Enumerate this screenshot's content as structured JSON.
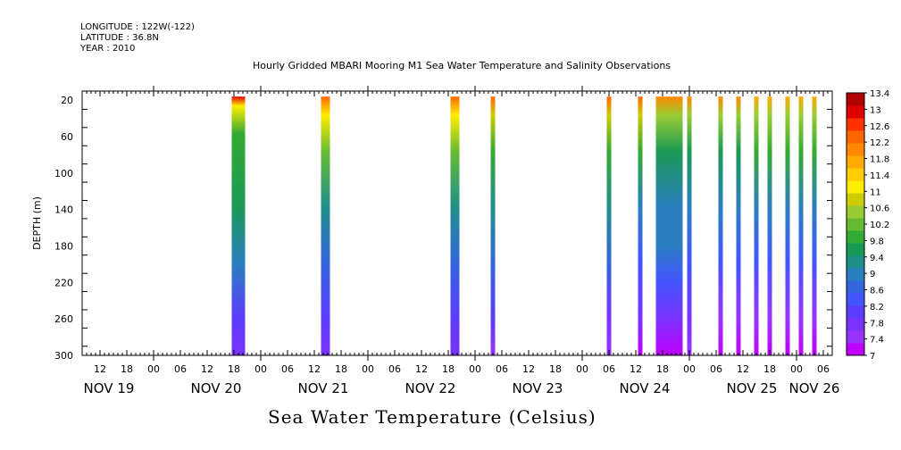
{
  "header": {
    "longitude": "LONGITUDE : 122W(-122)",
    "latitude": "LATITUDE : 36.8N",
    "year": "YEAR : 2010"
  },
  "chart_data": {
    "type": "heatmap",
    "title": "Hourly Gridded MBARI Mooring M1 Sea Water Temperature and Salinity Observations",
    "ylabel": "DEPTH (m)",
    "xlabel": "Sea Water Temperature (Celsius)",
    "y_reversed": true,
    "ylim": [
      300,
      10
    ],
    "y_ticks": [
      20,
      60,
      100,
      140,
      180,
      220,
      260,
      300
    ],
    "x_unit": "hour offset from NOV 19 00:00",
    "xlim": [
      8,
      176
    ],
    "x_hour_ticks": [
      {
        "t": 12,
        "label": "12"
      },
      {
        "t": 18,
        "label": "18"
      },
      {
        "t": 24,
        "label": "00"
      },
      {
        "t": 30,
        "label": "06"
      },
      {
        "t": 36,
        "label": "12"
      },
      {
        "t": 42,
        "label": "18"
      },
      {
        "t": 48,
        "label": "00"
      },
      {
        "t": 54,
        "label": "06"
      },
      {
        "t": 60,
        "label": "12"
      },
      {
        "t": 66,
        "label": "18"
      },
      {
        "t": 72,
        "label": "00"
      },
      {
        "t": 78,
        "label": "06"
      },
      {
        "t": 84,
        "label": "12"
      },
      {
        "t": 90,
        "label": "18"
      },
      {
        "t": 96,
        "label": "00"
      },
      {
        "t": 102,
        "label": "06"
      },
      {
        "t": 108,
        "label": "12"
      },
      {
        "t": 114,
        "label": "18"
      },
      {
        "t": 120,
        "label": "00"
      },
      {
        "t": 126,
        "label": "06"
      },
      {
        "t": 132,
        "label": "12"
      },
      {
        "t": 138,
        "label": "18"
      },
      {
        "t": 144,
        "label": "00"
      },
      {
        "t": 150,
        "label": "06"
      },
      {
        "t": 156,
        "label": "12"
      },
      {
        "t": 162,
        "label": "18"
      },
      {
        "t": 168,
        "label": "00"
      },
      {
        "t": 174,
        "label": "06"
      }
    ],
    "x_day_labels": [
      {
        "t": 14,
        "label": "NOV 19"
      },
      {
        "t": 38,
        "label": "NOV 20"
      },
      {
        "t": 62,
        "label": "NOV 21"
      },
      {
        "t": 86,
        "label": "NOV 22"
      },
      {
        "t": 110,
        "label": "NOV 23"
      },
      {
        "t": 134,
        "label": "NOV 24"
      },
      {
        "t": 158,
        "label": "NOV 25"
      },
      {
        "t": 172,
        "label": "NOV 26"
      }
    ],
    "colorbar": {
      "labels": [
        "13.4",
        "13",
        "12.6",
        "12.2",
        "11.8",
        "11.4",
        "11",
        "10.6",
        "10.2",
        "9.8",
        "9.4",
        "9",
        "8.6",
        "8.2",
        "7.8",
        "7.4",
        "7"
      ],
      "range": [
        7,
        13.6
      ],
      "colors": [
        "#c000ff",
        "#9933ff",
        "#7a33ff",
        "#5c3dff",
        "#4455ff",
        "#3366dd",
        "#2a7fc0",
        "#1f8f8a",
        "#1a9955",
        "#33aa33",
        "#66bb33",
        "#99cc33",
        "#cccc00",
        "#ffee00",
        "#ffcc00",
        "#ffaa00",
        "#ff8800",
        "#ff6600",
        "#ff3300",
        "#e00000",
        "#b00000"
      ]
    },
    "columns": [
      {
        "t_start": 41.5,
        "t_end": 44.5,
        "profile": [
          {
            "d": 20,
            "v": 13.0
          },
          {
            "d": 30,
            "v": 11.2
          },
          {
            "d": 60,
            "v": 10.0
          },
          {
            "d": 140,
            "v": 9.6
          },
          {
            "d": 200,
            "v": 8.9
          },
          {
            "d": 260,
            "v": 8.1
          },
          {
            "d": 300,
            "v": 7.8
          }
        ]
      },
      {
        "t_start": 61.5,
        "t_end": 63.5,
        "profile": [
          {
            "d": 20,
            "v": 12.5
          },
          {
            "d": 40,
            "v": 11.2
          },
          {
            "d": 80,
            "v": 10.3
          },
          {
            "d": 140,
            "v": 9.5
          },
          {
            "d": 200,
            "v": 8.8
          },
          {
            "d": 260,
            "v": 8.2
          },
          {
            "d": 300,
            "v": 7.8
          }
        ]
      },
      {
        "t_start": 90.5,
        "t_end": 92.5,
        "profile": [
          {
            "d": 20,
            "v": 12.6
          },
          {
            "d": 40,
            "v": 11.2
          },
          {
            "d": 80,
            "v": 10.2
          },
          {
            "d": 140,
            "v": 9.5
          },
          {
            "d": 200,
            "v": 8.8
          },
          {
            "d": 260,
            "v": 8.1
          },
          {
            "d": 300,
            "v": 7.7
          }
        ]
      },
      {
        "t_start": 99.5,
        "t_end": 100.5,
        "profile": [
          {
            "d": 20,
            "v": 12.4
          },
          {
            "d": 40,
            "v": 11.0
          },
          {
            "d": 80,
            "v": 10.1
          },
          {
            "d": 140,
            "v": 9.4
          },
          {
            "d": 200,
            "v": 8.7
          },
          {
            "d": 260,
            "v": 8.0
          },
          {
            "d": 300,
            "v": 7.6
          }
        ]
      },
      {
        "t_start": 125.5,
        "t_end": 126.5,
        "profile": [
          {
            "d": 20,
            "v": 12.4
          },
          {
            "d": 40,
            "v": 11.0
          },
          {
            "d": 80,
            "v": 10.0
          },
          {
            "d": 140,
            "v": 9.3
          },
          {
            "d": 200,
            "v": 8.6
          },
          {
            "d": 260,
            "v": 7.9
          },
          {
            "d": 300,
            "v": 7.5
          }
        ]
      },
      {
        "t_start": 132.5,
        "t_end": 133.5,
        "profile": [
          {
            "d": 20,
            "v": 12.4
          },
          {
            "d": 40,
            "v": 10.8
          },
          {
            "d": 80,
            "v": 9.9
          },
          {
            "d": 140,
            "v": 9.2
          },
          {
            "d": 200,
            "v": 8.5
          },
          {
            "d": 260,
            "v": 7.8
          },
          {
            "d": 300,
            "v": 7.3
          }
        ]
      },
      {
        "t_start": 136.5,
        "t_end": 142.5,
        "profile": [
          {
            "d": 20,
            "v": 12.2
          },
          {
            "d": 40,
            "v": 10.6
          },
          {
            "d": 80,
            "v": 9.8
          },
          {
            "d": 140,
            "v": 9.2
          },
          {
            "d": 180,
            "v": 8.9
          },
          {
            "d": 220,
            "v": 8.3
          },
          {
            "d": 260,
            "v": 7.7
          },
          {
            "d": 300,
            "v": 7.2
          }
        ]
      },
      {
        "t_start": 143.5,
        "t_end": 144.5,
        "profile": [
          {
            "d": 20,
            "v": 12.2
          },
          {
            "d": 40,
            "v": 10.6
          },
          {
            "d": 80,
            "v": 9.8
          },
          {
            "d": 140,
            "v": 9.1
          },
          {
            "d": 200,
            "v": 8.5
          },
          {
            "d": 260,
            "v": 7.8
          },
          {
            "d": 300,
            "v": 7.4
          }
        ]
      },
      {
        "t_start": 150.5,
        "t_end": 151.5,
        "profile": [
          {
            "d": 20,
            "v": 12.1
          },
          {
            "d": 40,
            "v": 10.6
          },
          {
            "d": 80,
            "v": 9.8
          },
          {
            "d": 140,
            "v": 9.1
          },
          {
            "d": 200,
            "v": 8.4
          },
          {
            "d": 260,
            "v": 7.6
          },
          {
            "d": 300,
            "v": 7.2
          }
        ]
      },
      {
        "t_start": 154.5,
        "t_end": 155.5,
        "profile": [
          {
            "d": 20,
            "v": 12.1
          },
          {
            "d": 40,
            "v": 10.6
          },
          {
            "d": 80,
            "v": 9.8
          },
          {
            "d": 140,
            "v": 9.1
          },
          {
            "d": 200,
            "v": 8.4
          },
          {
            "d": 260,
            "v": 7.6
          },
          {
            "d": 300,
            "v": 7.2
          }
        ]
      },
      {
        "t_start": 158.5,
        "t_end": 159.5,
        "profile": [
          {
            "d": 20,
            "v": 12.0
          },
          {
            "d": 40,
            "v": 10.7
          },
          {
            "d": 80,
            "v": 9.9
          },
          {
            "d": 140,
            "v": 9.2
          },
          {
            "d": 200,
            "v": 8.4
          },
          {
            "d": 260,
            "v": 7.6
          },
          {
            "d": 300,
            "v": 7.1
          }
        ]
      },
      {
        "t_start": 161.5,
        "t_end": 162.5,
        "profile": [
          {
            "d": 20,
            "v": 12.0
          },
          {
            "d": 40,
            "v": 10.7
          },
          {
            "d": 80,
            "v": 9.9
          },
          {
            "d": 140,
            "v": 9.2
          },
          {
            "d": 200,
            "v": 8.4
          },
          {
            "d": 260,
            "v": 7.6
          },
          {
            "d": 300,
            "v": 7.1
          }
        ]
      },
      {
        "t_start": 165.5,
        "t_end": 166.5,
        "profile": [
          {
            "d": 20,
            "v": 12.0
          },
          {
            "d": 40,
            "v": 10.7
          },
          {
            "d": 80,
            "v": 9.9
          },
          {
            "d": 140,
            "v": 9.2
          },
          {
            "d": 200,
            "v": 8.4
          },
          {
            "d": 260,
            "v": 7.6
          },
          {
            "d": 300,
            "v": 7.1
          }
        ]
      },
      {
        "t_start": 168.5,
        "t_end": 169.5,
        "profile": [
          {
            "d": 20,
            "v": 12.0
          },
          {
            "d": 40,
            "v": 10.7
          },
          {
            "d": 80,
            "v": 9.9
          },
          {
            "d": 140,
            "v": 9.2
          },
          {
            "d": 200,
            "v": 8.4
          },
          {
            "d": 260,
            "v": 7.6
          },
          {
            "d": 300,
            "v": 7.1
          }
        ]
      },
      {
        "t_start": 171.5,
        "t_end": 172.5,
        "profile": [
          {
            "d": 20,
            "v": 12.0
          },
          {
            "d": 40,
            "v": 10.7
          },
          {
            "d": 80,
            "v": 9.9
          },
          {
            "d": 140,
            "v": 9.2
          },
          {
            "d": 200,
            "v": 8.4
          },
          {
            "d": 260,
            "v": 7.6
          },
          {
            "d": 300,
            "v": 7.1
          }
        ]
      }
    ]
  }
}
